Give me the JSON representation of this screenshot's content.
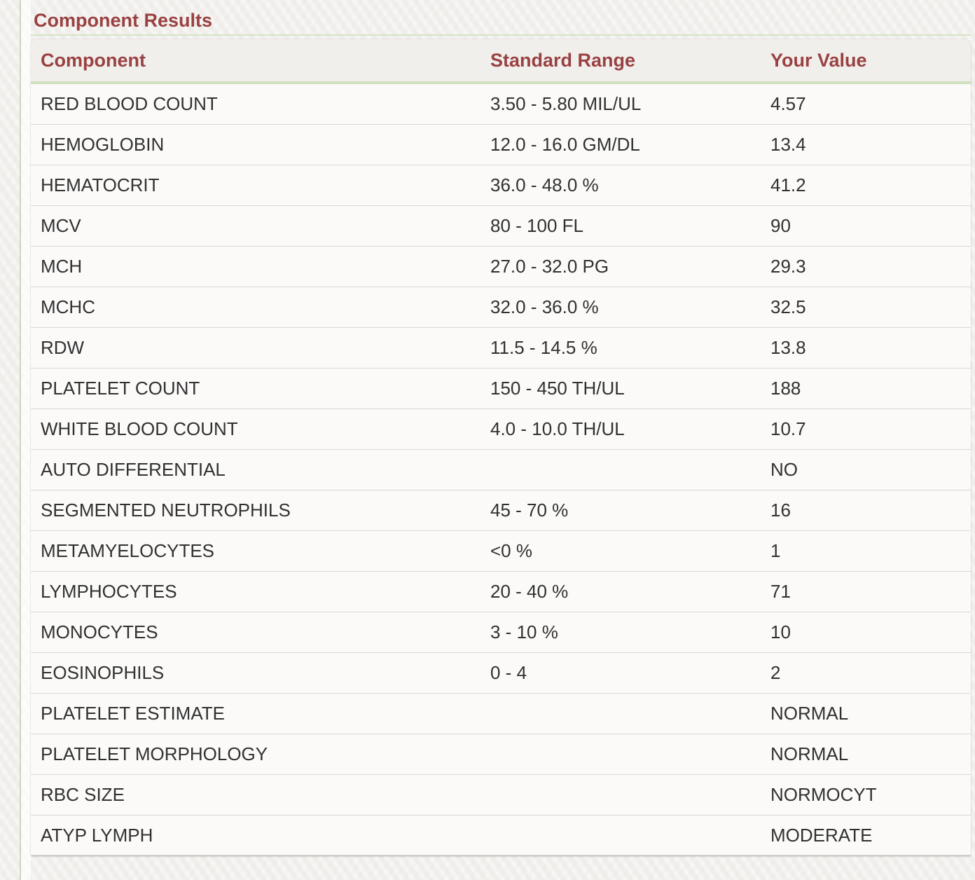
{
  "colors": {
    "accent": "#9a4142",
    "green-line": "#d5e4c5",
    "header-green": "#cfe0bd",
    "row-border": "#d9d8d5",
    "row-bg": "#fbfaf9",
    "header-bg": "#f0efec",
    "page-bg": "#f1f0ed",
    "gutter-line": "#ccd6c0",
    "text": "#313131"
  },
  "section": {
    "title": "Component Results"
  },
  "table": {
    "headers": [
      {
        "label": "Component"
      },
      {
        "label": "Standard Range"
      },
      {
        "label": "Your Value"
      }
    ],
    "rows": [
      {
        "component": "RED BLOOD COUNT",
        "standard_range": "3.50 - 5.80 MIL/UL",
        "your_value": "4.57"
      },
      {
        "component": "HEMOGLOBIN",
        "standard_range": "12.0 - 16.0 GM/DL",
        "your_value": "13.4"
      },
      {
        "component": "HEMATOCRIT",
        "standard_range": "36.0 - 48.0 %",
        "your_value": "41.2"
      },
      {
        "component": "MCV",
        "standard_range": "80 - 100 FL",
        "your_value": "90"
      },
      {
        "component": "MCH",
        "standard_range": "27.0 - 32.0 PG",
        "your_value": "29.3"
      },
      {
        "component": "MCHC",
        "standard_range": "32.0 - 36.0 %",
        "your_value": "32.5"
      },
      {
        "component": "RDW",
        "standard_range": "11.5 - 14.5 %",
        "your_value": "13.8"
      },
      {
        "component": "PLATELET COUNT",
        "standard_range": "150 - 450 TH/UL",
        "your_value": "188"
      },
      {
        "component": "WHITE BLOOD COUNT",
        "standard_range": "4.0 - 10.0 TH/UL",
        "your_value": "10.7"
      },
      {
        "component": "AUTO DIFFERENTIAL",
        "standard_range": "",
        "your_value": "NO"
      },
      {
        "component": "SEGMENTED NEUTROPHILS",
        "standard_range": "45 - 70 %",
        "your_value": "16"
      },
      {
        "component": "METAMYELOCYTES",
        "standard_range": "<0 %",
        "your_value": "1"
      },
      {
        "component": "LYMPHOCYTES",
        "standard_range": "20 - 40 %",
        "your_value": "71"
      },
      {
        "component": "MONOCYTES",
        "standard_range": "3 - 10 %",
        "your_value": "10"
      },
      {
        "component": "EOSINOPHILS",
        "standard_range": "0 - 4",
        "your_value": "2"
      },
      {
        "component": "PLATELET ESTIMATE",
        "standard_range": "",
        "your_value": "NORMAL"
      },
      {
        "component": "PLATELET MORPHOLOGY",
        "standard_range": "",
        "your_value": "NORMAL"
      },
      {
        "component": "RBC SIZE",
        "standard_range": "",
        "your_value": "NORMOCYT"
      },
      {
        "component": "ATYP LYMPH",
        "standard_range": "",
        "your_value": "MODERATE"
      }
    ]
  }
}
